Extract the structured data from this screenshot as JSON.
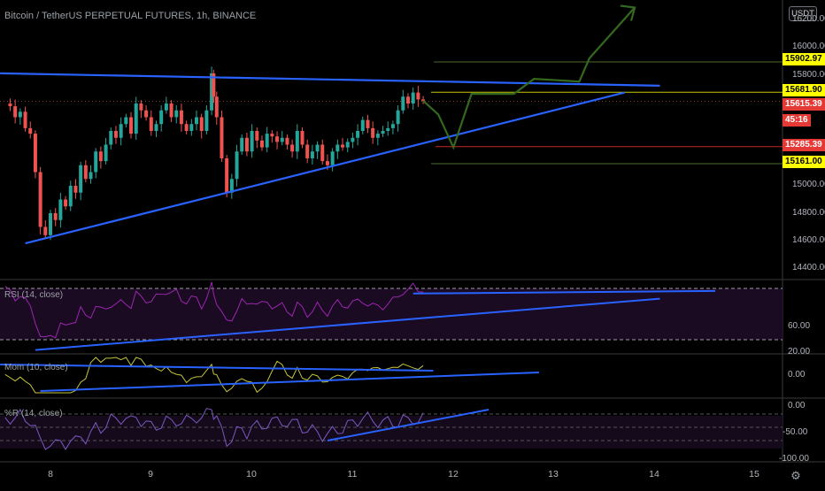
{
  "header": {
    "title": "Bitcoin / TetherUS PERPETUAL FUTURES, 1h, BINANCE",
    "currency_button": "USDT",
    "countdown": "45:16"
  },
  "main_price_axis": {
    "ticks": [
      "16200.00",
      "16000.00",
      "15800.00",
      "15000.00",
      "14800.00",
      "14600.00",
      "14400.00"
    ]
  },
  "price_tags": [
    {
      "label": "15902.97",
      "bg": "#ffff00",
      "fg": "#000000"
    },
    {
      "label": "15681.90",
      "bg": "#ffff00",
      "fg": "#000000"
    },
    {
      "label": "15615.39",
      "bg": "#e53935",
      "fg": "#ffffff"
    },
    {
      "label": "15285.39",
      "bg": "#e53935",
      "fg": "#ffffff"
    },
    {
      "label": "15161.00",
      "bg": "#ffff00",
      "fg": "#000000"
    }
  ],
  "x_axis": {
    "ticks": [
      "8",
      "9",
      "10",
      "11",
      "12",
      "13",
      "14",
      "15"
    ]
  },
  "indicators": {
    "rsi": {
      "label": "RSI (14, close)",
      "ticks": [
        "60.00",
        "20.00"
      ]
    },
    "mom": {
      "label": "Mom (10, close)",
      "ticks": [
        "0.00"
      ]
    },
    "wr": {
      "label": "%R (14, close)",
      "ticks": [
        "0.00",
        "-50.00",
        "-100.00"
      ]
    }
  },
  "colors": {
    "up": "#26a69a",
    "down": "#ef5350",
    "trendline": "#2962ff",
    "projection": "#33691e",
    "rsi": "#9c27b0",
    "mom": "#c6c63a",
    "wr": "#7e57c2"
  },
  "chart_data": {
    "type": "candlestick",
    "title": "Bitcoin / TetherUS PERPETUAL FUTURES, 1h, BINANCE",
    "timeframe": "1h",
    "x_ticks": [
      8,
      9,
      10,
      11,
      12,
      13,
      14,
      15
    ],
    "ylim": [
      14300,
      16300
    ],
    "x_range": [
      7.5,
      15.3
    ],
    "close_path": [
      [
        7.55,
        15600
      ],
      [
        7.6,
        15580
      ],
      [
        7.65,
        15500
      ],
      [
        7.7,
        15540
      ],
      [
        7.75,
        15420
      ],
      [
        7.8,
        15380
      ],
      [
        7.85,
        15100
      ],
      [
        7.9,
        14700
      ],
      [
        7.95,
        14640
      ],
      [
        8.0,
        14800
      ],
      [
        8.05,
        14750
      ],
      [
        8.1,
        14900
      ],
      [
        8.15,
        14850
      ],
      [
        8.2,
        15000
      ],
      [
        8.25,
        14950
      ],
      [
        8.3,
        15150
      ],
      [
        8.35,
        15050
      ],
      [
        8.4,
        15100
      ],
      [
        8.45,
        15250
      ],
      [
        8.5,
        15180
      ],
      [
        8.55,
        15300
      ],
      [
        8.6,
        15400
      ],
      [
        8.65,
        15350
      ],
      [
        8.7,
        15450
      ],
      [
        8.75,
        15500
      ],
      [
        8.8,
        15380
      ],
      [
        8.85,
        15600
      ],
      [
        8.9,
        15550
      ],
      [
        8.95,
        15500
      ],
      [
        9.0,
        15400
      ],
      [
        9.05,
        15450
      ],
      [
        9.1,
        15550
      ],
      [
        9.15,
        15600
      ],
      [
        9.2,
        15500
      ],
      [
        9.25,
        15550
      ],
      [
        9.3,
        15450
      ],
      [
        9.35,
        15400
      ],
      [
        9.4,
        15450
      ],
      [
        9.45,
        15500
      ],
      [
        9.5,
        15400
      ],
      [
        9.55,
        15550
      ],
      [
        9.6,
        15820
      ],
      [
        9.62,
        15650
      ],
      [
        9.65,
        15500
      ],
      [
        9.7,
        15200
      ],
      [
        9.75,
        14950
      ],
      [
        9.8,
        15050
      ],
      [
        9.85,
        15250
      ],
      [
        9.9,
        15350
      ],
      [
        9.95,
        15250
      ],
      [
        10.0,
        15400
      ],
      [
        10.05,
        15330
      ],
      [
        10.1,
        15280
      ],
      [
        10.15,
        15380
      ],
      [
        10.2,
        15360
      ],
      [
        10.25,
        15320
      ],
      [
        10.3,
        15350
      ],
      [
        10.35,
        15300
      ],
      [
        10.4,
        15250
      ],
      [
        10.45,
        15400
      ],
      [
        10.5,
        15300
      ],
      [
        10.55,
        15200
      ],
      [
        10.6,
        15250
      ],
      [
        10.65,
        15300
      ],
      [
        10.7,
        15180
      ],
      [
        10.75,
        15150
      ],
      [
        10.8,
        15250
      ],
      [
        10.85,
        15300
      ],
      [
        10.9,
        15280
      ],
      [
        10.95,
        15320
      ],
      [
        11.0,
        15350
      ],
      [
        11.05,
        15400
      ],
      [
        11.1,
        15480
      ],
      [
        11.15,
        15420
      ],
      [
        11.2,
        15350
      ],
      [
        11.25,
        15380
      ],
      [
        11.3,
        15400
      ],
      [
        11.35,
        15420
      ],
      [
        11.4,
        15450
      ],
      [
        11.45,
        15550
      ],
      [
        11.5,
        15650
      ],
      [
        11.55,
        15600
      ],
      [
        11.6,
        15680
      ],
      [
        11.65,
        15630
      ],
      [
        11.7,
        15620
      ]
    ],
    "horizontal_levels": [
      15902.97,
      15681.9,
      15615.39,
      15285.39,
      15161.0
    ],
    "trendlines": [
      {
        "from": [
          7.5,
          15820
        ],
        "to": [
          14.05,
          15730
        ]
      },
      {
        "from": [
          7.75,
          14580
        ],
        "to": [
          13.7,
          15680
        ]
      }
    ],
    "projection": [
      [
        11.7,
        15620
      ],
      [
        11.85,
        15520
      ],
      [
        12.0,
        15280
      ],
      [
        12.18,
        15670
      ],
      [
        12.6,
        15670
      ],
      [
        12.8,
        15780
      ],
      [
        13.25,
        15760
      ],
      [
        13.35,
        15930
      ],
      [
        13.8,
        16300
      ]
    ],
    "rsi": {
      "range": [
        10,
        80
      ],
      "bands": [
        30,
        70
      ],
      "trend": [
        {
          "from": [
            7.85,
            22
          ],
          "to": [
            14.05,
            62
          ]
        },
        {
          "from": [
            11.6,
            66
          ],
          "to": [
            14.6,
            68
          ]
        }
      ]
    },
    "mom": {
      "range": [
        -1,
        1
      ],
      "trend": [
        {
          "from": [
            7.5,
            0.6
          ],
          "to": [
            11.8,
            0.25
          ]
        },
        {
          "from": [
            7.9,
            -0.9
          ],
          "to": [
            12.85,
            0.15
          ]
        }
      ]
    },
    "wr": {
      "range": [
        -100,
        0
      ],
      "levels": [
        -20,
        -50,
        -80
      ],
      "trend": [
        {
          "from": [
            10.75,
            -80
          ],
          "to": [
            12.35,
            -10
          ]
        }
      ]
    }
  }
}
